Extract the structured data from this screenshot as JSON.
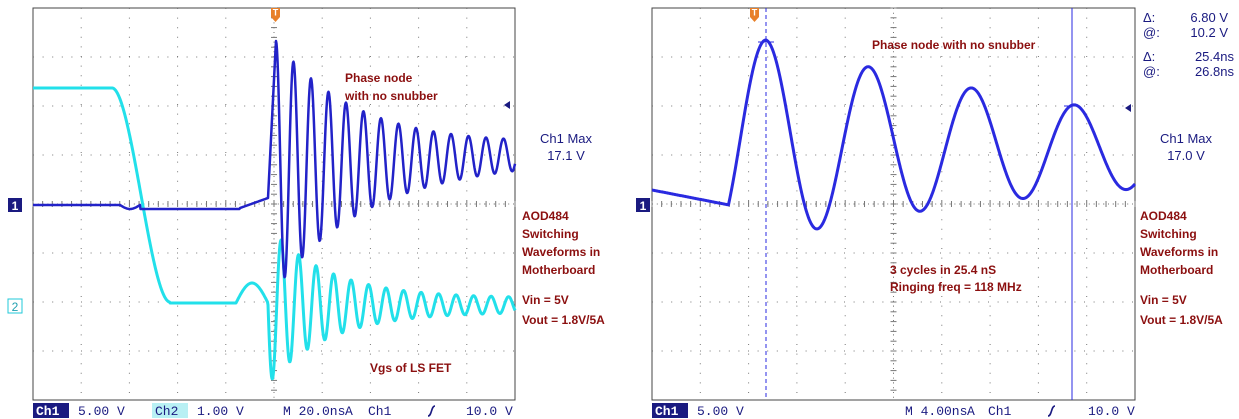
{
  "scopes": [
    {
      "trigger_marker": "T",
      "channel_markers": [
        "1",
        "2"
      ],
      "annotation_title": [
        "Phase node",
        "with no snubber"
      ],
      "measurement": [
        "Ch1 Max",
        "17.1 V"
      ],
      "description": [
        "AOD484",
        "Switching",
        "Waveforms in",
        "Motherboard"
      ],
      "conditions": [
        "Vin = 5V",
        "Vout = 1.8V/5A"
      ],
      "trace_label": "Vgs of LS FET",
      "status_bar": {
        "ch1": "Ch1",
        "ch1_scale": "5.00 V",
        "ch2": "Ch2",
        "ch2_scale": "1.00 V",
        "timebase": "M 20.0ns",
        "mode": "A",
        "trigger_source": "Ch1",
        "trigger_level": "10.0 V"
      }
    },
    {
      "trigger_marker": "T",
      "channel_markers": [
        "1"
      ],
      "annotation_title": [
        "Phase node with no snubber"
      ],
      "cursors": [
        "Δ:",
        "6.80 V",
        "@:",
        "10.2 V",
        "Δ:",
        "25.4ns",
        "@:",
        "26.8ns"
      ],
      "measurement": [
        "Ch1 Max",
        "17.0 V"
      ],
      "description": [
        "AOD484",
        "Switching",
        "Waveforms in",
        "Motherboard"
      ],
      "conditions": [
        "Vin = 5V",
        "Vout = 1.8V/5A"
      ],
      "trace_label": [
        "3 cycles in  25.4 nS",
        "Ringing freq = 118 MHz"
      ],
      "status_bar": {
        "ch1": "Ch1",
        "ch1_scale": "5.00 V",
        "timebase": "M 4.00ns",
        "mode": "A",
        "trigger_source": "Ch1",
        "trigger_level": "10.0 V"
      }
    }
  ]
}
